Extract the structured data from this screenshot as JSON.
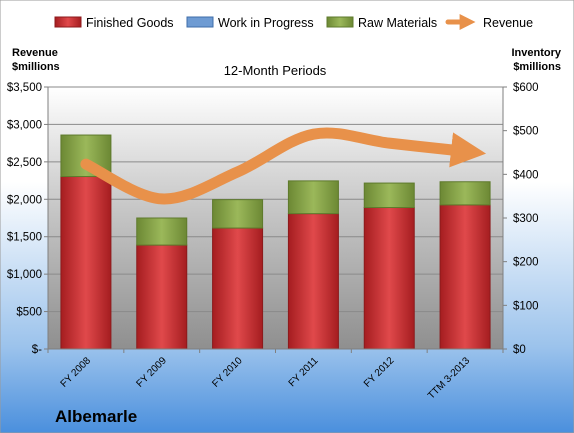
{
  "company": "Albemarle",
  "chart_data": {
    "type": "bar",
    "stacked": true,
    "title": "12-Month Periods",
    "left_axis_label": [
      "Revenue",
      "$millions"
    ],
    "right_axis_label": [
      "Inventory",
      "$millions"
    ],
    "categories": [
      "FY 2008",
      "FY 2009",
      "FY 2010",
      "FY 2011",
      "FY 2012",
      "TTM 3-2013"
    ],
    "series": [
      {
        "name": "Finished Goods",
        "axis": "right",
        "color": "#c0282a",
        "values": [
          395,
          238,
          277,
          310,
          324,
          330
        ]
      },
      {
        "name": "Work in Progress",
        "axis": "right",
        "color": "#4f81bd",
        "values": [
          0,
          0,
          0,
          0,
          0,
          0
        ]
      },
      {
        "name": "Raw Materials",
        "axis": "right",
        "color": "#7f9a3f",
        "values": [
          95,
          62,
          65,
          75,
          56,
          53
        ]
      },
      {
        "name": "Revenue",
        "type": "line",
        "axis": "left",
        "color": "#e8914a",
        "values": [
          2470,
          2005,
          2365,
          2870,
          2750,
          2640
        ]
      }
    ],
    "left_axis": {
      "min": 0,
      "max": 3500,
      "step": 500,
      "tick_labels": [
        "$-",
        "$500",
        "$1,000",
        "$1,500",
        "$2,000",
        "$2,500",
        "$3,000",
        "$3,500"
      ]
    },
    "right_axis": {
      "min": 0,
      "max": 600,
      "step": 100,
      "tick_labels": [
        "$0",
        "$100",
        "$200",
        "$300",
        "$400",
        "$500",
        "$600"
      ]
    },
    "grid": true,
    "legend_position": "top"
  }
}
